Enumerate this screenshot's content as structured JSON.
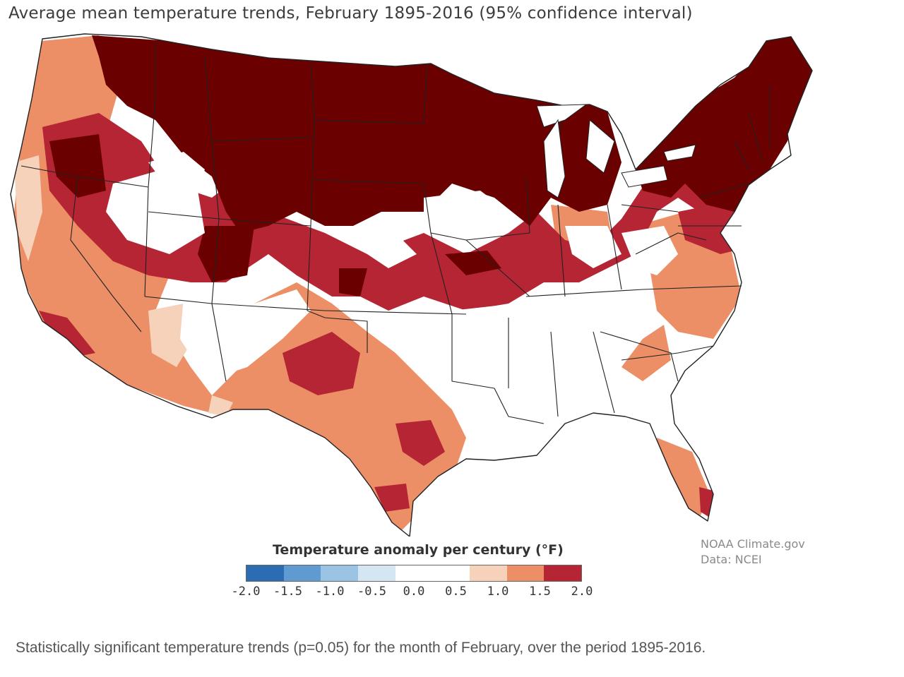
{
  "map": {
    "title": "Average mean temperature trends, February 1895-2016 (95% confidence interval)",
    "region": "Contiguous United States",
    "credit_line1": "NOAA Climate.gov",
    "credit_line2": "Data: NCEI",
    "caption": "Statistically significant temperature trends (p=0.05) for the month of February, over the period 1895-2016."
  },
  "legend": {
    "title": "Temperature anomaly per century (°F)",
    "ticks": [
      "-2.0",
      "-1.5",
      "-1.0",
      "-0.5",
      "0.0",
      "0.5",
      "1.0",
      "1.5",
      "2.0"
    ],
    "colors": [
      "#2b6cb3",
      "#5f9bd0",
      "#9ac3e4",
      "#d4e6f2",
      "#ffffff",
      "#ffffff",
      "#f7d2bb",
      "#ec8f66",
      "#b52534"
    ]
  },
  "palette": {
    "no_trend": "#ffffff",
    "light": "#f7d2bb",
    "orange": "#ec8f66",
    "red": "#b52534",
    "dark": "#6a0000",
    "border": "#222222"
  }
}
